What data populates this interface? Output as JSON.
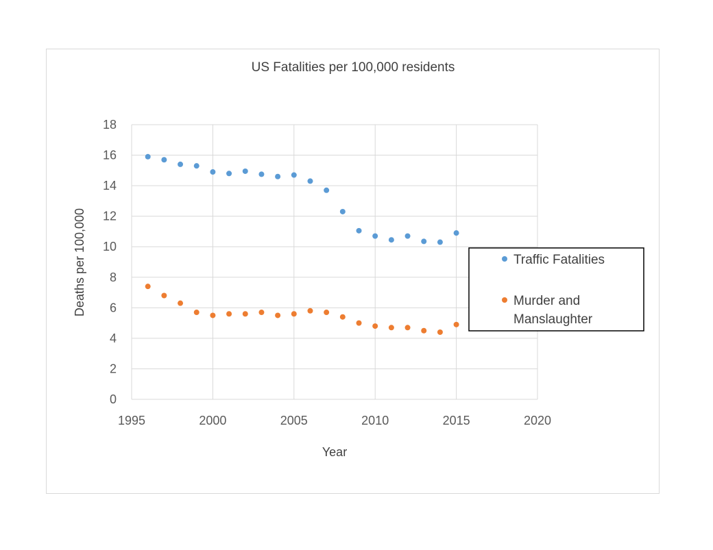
{
  "chart_data": {
    "type": "scatter",
    "title": "US Fatalities per 100,000 residents",
    "xlabel": "Year",
    "ylabel": "Deaths per 100,000",
    "xlim": [
      1995,
      2020
    ],
    "ylim": [
      0,
      18
    ],
    "xticks": [
      1995,
      2000,
      2005,
      2010,
      2015,
      2020
    ],
    "yticks": [
      0,
      2,
      4,
      6,
      8,
      10,
      12,
      14,
      16,
      18
    ],
    "grid": true,
    "legend_position": "right",
    "series": [
      {
        "name": "Traffic Fatalities",
        "color": "#5b9bd5",
        "x": [
          1996,
          1997,
          1998,
          1999,
          2000,
          2001,
          2002,
          2003,
          2004,
          2005,
          2006,
          2007,
          2008,
          2009,
          2010,
          2011,
          2012,
          2013,
          2014,
          2015
        ],
        "y": [
          15.9,
          15.7,
          15.4,
          15.3,
          14.9,
          14.8,
          14.95,
          14.75,
          14.6,
          14.7,
          14.3,
          13.7,
          12.3,
          11.05,
          10.7,
          10.45,
          10.7,
          10.35,
          10.3,
          10.9
        ]
      },
      {
        "name": "Murder and Manslaughter",
        "legend_lines": [
          "Murder and",
          "Manslaughter"
        ],
        "color": "#ed7d31",
        "x": [
          1996,
          1997,
          1998,
          1999,
          2000,
          2001,
          2002,
          2003,
          2004,
          2005,
          2006,
          2007,
          2008,
          2009,
          2010,
          2011,
          2012,
          2013,
          2014,
          2015
        ],
        "y": [
          7.4,
          6.8,
          6.3,
          5.7,
          5.5,
          5.6,
          5.6,
          5.7,
          5.5,
          5.6,
          5.8,
          5.7,
          5.4,
          5.0,
          4.8,
          4.7,
          4.7,
          4.5,
          4.4,
          4.9
        ]
      }
    ]
  }
}
